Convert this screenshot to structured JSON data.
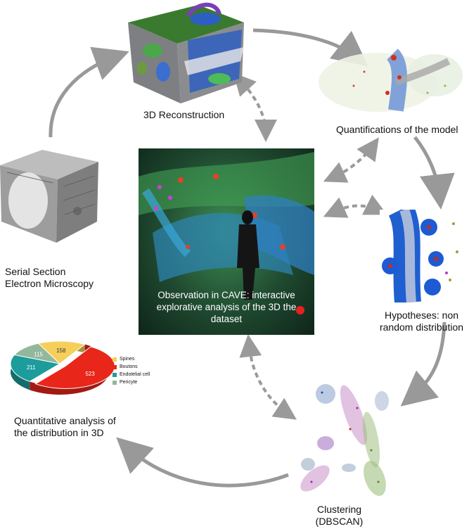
{
  "labels": {
    "reconstruction": "3D Reconstruction",
    "quantifications": "Quantifications of the model",
    "hypotheses_line1": "Hypotheses: non",
    "hypotheses_line2": "random distribution",
    "clustering_line1": "Clustering",
    "clustering_line2": "(DBSCAN)",
    "quantitative_line1": "Quantitative analysis of",
    "quantitative_line2": "the distribution in 3D",
    "serial_line1": "Serial Section",
    "serial_line2": "Electron Microscopy",
    "cave_line1": "Observation in CAVE: interactive",
    "cave_line2": "explorative analysis of the 3D the",
    "cave_line3": "dataset"
  },
  "pie": {
    "slices": [
      {
        "name": "Spines",
        "value": 158,
        "color": "#f5cf5a"
      },
      {
        "name": "Boutons",
        "value": 523,
        "color": "#e8261a"
      },
      {
        "name": "Endotelial cell",
        "value": 211,
        "color": "#1d9c9c"
      },
      {
        "name": "Pericyte",
        "value": 115,
        "color": "#93b79b"
      }
    ]
  },
  "colors": {
    "arrow": "#999999",
    "dashed_arrow": "#9a9a9a"
  }
}
